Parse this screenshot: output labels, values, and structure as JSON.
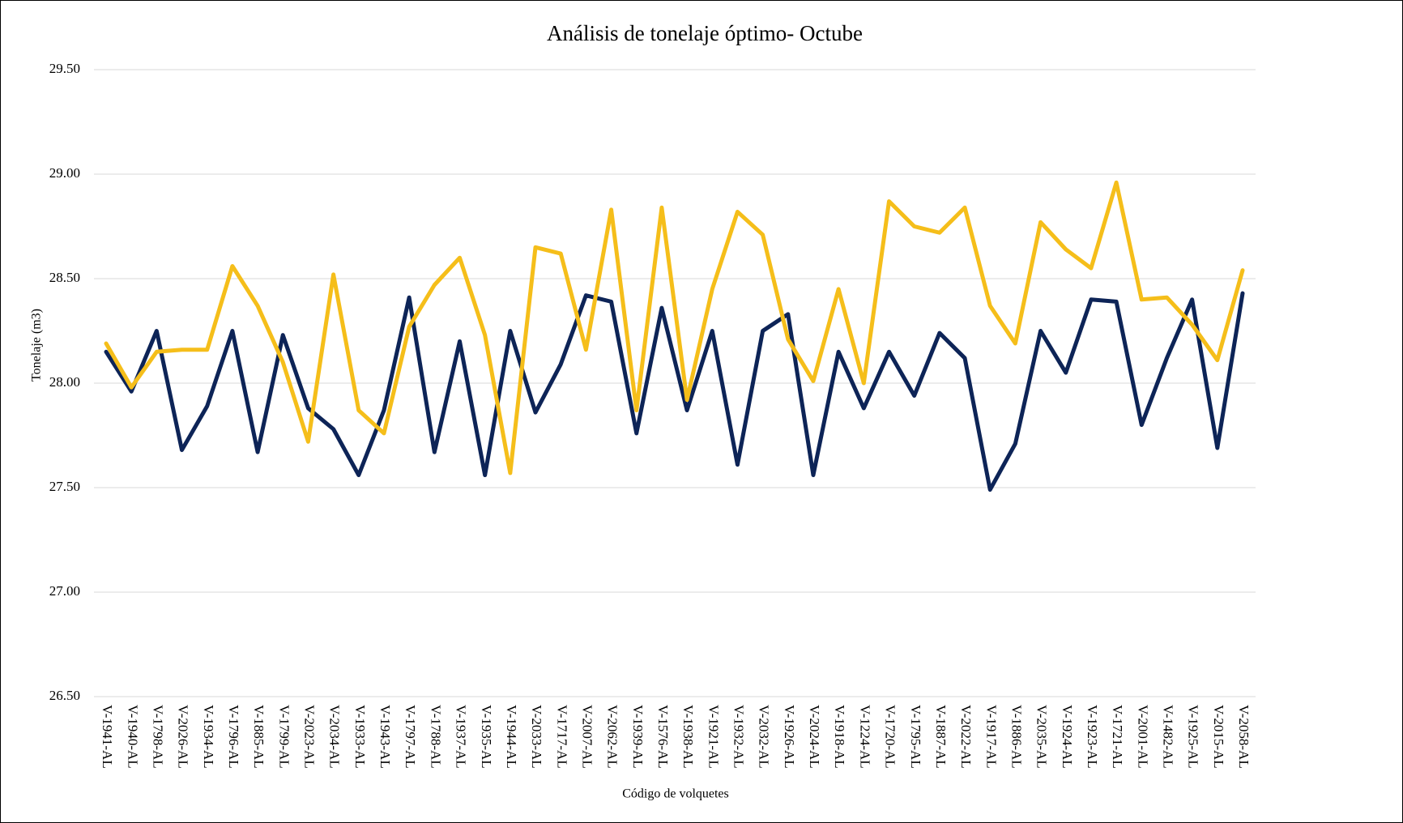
{
  "chart_data": {
    "type": "line",
    "title": "Análisis de tonelaje óptimo- Octube",
    "x_label": "Código de volquetes",
    "y_label": "Tonelaje (m3)",
    "categories": [
      "V-1941-AL",
      "V-1940-AL",
      "V-1798-AL",
      "V-2026-AL",
      "V-1934-AL",
      "V-1796-AL",
      "V-1885-AL",
      "V-1799-AL",
      "V-2023-AL",
      "V-2034-AL",
      "V-1933-AL",
      "V-1943-AL",
      "V-1797-AL",
      "V-1788-AL",
      "V-1937-AL",
      "V-1935-AL",
      "V-1944-AL",
      "V-2033-AL",
      "V-1717-AL",
      "V-2007-AL",
      "V-2062-AL",
      "V-1939-AL",
      "V-1576-AL",
      "V-1938-AL",
      "V-1921-AL",
      "V-1932-AL",
      "V-2032-AL",
      "V-1926-AL",
      "V-2024-AL",
      "V-1918-AL",
      "V-1224-AL",
      "V-1720-AL",
      "V-1795-AL",
      "V-1887-AL",
      "V-2022-AL",
      "V-1917-AL",
      "V-1886-AL",
      "V-2035-AL",
      "V-1924-AL",
      "V-1923-AL",
      "V-1721-AL",
      "V-2001-AL",
      "V-1482-AL",
      "V-1925-AL",
      "V-2015-AL",
      "V-2058-AL"
    ],
    "series": [
      {
        "color": "#0d2457",
        "values": [
          28.15,
          27.96,
          28.25,
          27.68,
          27.89,
          28.25,
          27.67,
          28.23,
          27.88,
          27.78,
          27.56,
          27.87,
          28.41,
          27.67,
          28.2,
          27.56,
          28.25,
          27.86,
          28.09,
          28.42,
          28.39,
          27.76,
          28.36,
          27.87,
          28.25,
          27.61,
          28.25,
          28.33,
          27.56,
          28.15,
          27.88,
          28.15,
          27.94,
          28.24,
          28.12,
          27.49,
          27.71,
          28.25,
          28.05,
          28.4,
          28.39,
          27.8,
          28.12,
          28.4,
          27.69,
          28.43
        ]
      },
      {
        "color": "#f5be1a",
        "values": [
          28.19,
          27.98,
          28.15,
          28.16,
          28.16,
          28.56,
          28.37,
          28.1,
          27.72,
          28.52,
          27.87,
          27.76,
          28.27,
          28.47,
          28.6,
          28.23,
          27.57,
          28.65,
          28.62,
          28.16,
          28.83,
          27.87,
          28.84,
          27.92,
          28.45,
          28.82,
          28.71,
          28.21,
          28.01,
          28.45,
          28.0,
          28.87,
          28.75,
          28.72,
          28.84,
          28.37,
          28.19,
          28.77,
          28.64,
          28.55,
          28.96,
          28.4,
          28.41,
          28.28,
          28.11,
          28.54
        ]
      }
    ],
    "ylim": [
      26.5,
      29.5
    ],
    "yticks": [
      {
        "value": 26.5,
        "label": "26.50"
      },
      {
        "value": 27,
        "label": "27.00"
      },
      {
        "value": 27.5,
        "label": "27.50"
      },
      {
        "value": 28,
        "label": "28.00"
      },
      {
        "value": 28.5,
        "label": "28.50"
      },
      {
        "value": 29,
        "label": "29.00"
      },
      {
        "value": 29.5,
        "label": "29.50"
      }
    ],
    "grid": true
  }
}
